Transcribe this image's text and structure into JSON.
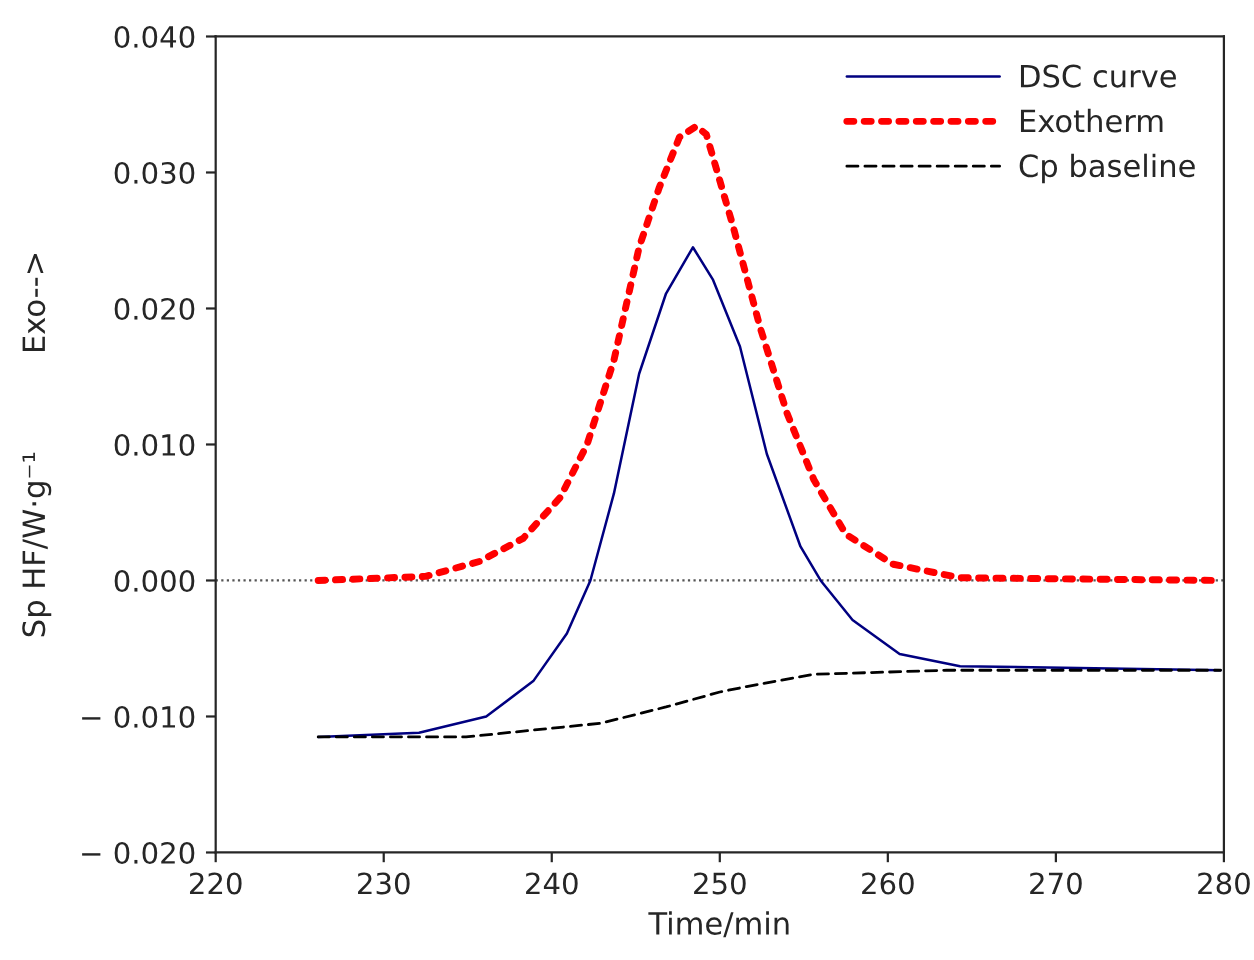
{
  "chart_data": {
    "type": "line",
    "xlabel": "Time/min",
    "ylabel": "Sp HF/W·g⁻¹          Exo-->",
    "xlim": [
      220,
      280
    ],
    "xticks": [
      220,
      230,
      240,
      250,
      260,
      270,
      280
    ],
    "ylim": [
      -0.02,
      0.04
    ],
    "yticks": [
      {
        "value": -0.02,
        "label": "− 0.020"
      },
      {
        "value": -0.01,
        "label": "− 0.010"
      },
      {
        "value": 0,
        "label": "0.000"
      },
      {
        "value": 0.01,
        "label": "0.010"
      },
      {
        "value": 0.02,
        "label": "0.020"
      },
      {
        "value": 0.03,
        "label": "0.030"
      },
      {
        "value": 0.04,
        "label": "0.040"
      }
    ],
    "grid": false,
    "legend": "top right",
    "marker": "none",
    "ref_lines": [
      {
        "axis": "y",
        "value": 0,
        "color": "#555555",
        "line_style": "dotted"
      }
    ],
    "series": [
      {
        "name": "DSC curve",
        "color": "#000080",
        "line_style": "solid",
        "x": [
          226.1,
          232.1,
          236.1,
          238.9,
          240.9,
          242.3,
          243.7,
          245.2,
          246.8,
          248.4,
          249.6,
          251.2,
          252.8,
          254.8,
          256.0,
          257.9,
          260.7,
          264.3,
          279.8
        ],
        "values": [
          -0.0115,
          -0.0112,
          -0.01,
          -0.0074,
          -0.0039,
          0.0,
          0.0064,
          0.0152,
          0.0211,
          0.0245,
          0.0221,
          0.0172,
          0.0093,
          0.0025,
          0.0,
          -0.0029,
          -0.0054,
          -0.0063,
          -0.0066
        ]
      },
      {
        "name": "Exotherm",
        "color": "#ff0000",
        "line_style": "dotted",
        "x": [
          226.1,
          232.5,
          235.7,
          238.3,
          240.5,
          242.1,
          243.7,
          245.2,
          246.4,
          247.6,
          248.6,
          249.2,
          250.8,
          252.4,
          254.0,
          255.6,
          257.5,
          260.3,
          264.3,
          279.8
        ],
        "values": [
          0.0,
          0.0003,
          0.0014,
          0.0031,
          0.0061,
          0.01,
          0.0162,
          0.0245,
          0.0289,
          0.0326,
          0.0334,
          0.0328,
          0.026,
          0.0186,
          0.0123,
          0.0074,
          0.0034,
          0.0012,
          0.0002,
          0.0
        ]
      },
      {
        "name": "Cp baseline",
        "color": "#000000",
        "line_style": "dashed",
        "x": [
          226.1,
          234.9,
          242.9,
          246.8,
          250.0,
          251.6,
          255.6,
          263.5,
          279.8
        ],
        "values": [
          -0.0115,
          -0.0115,
          -0.0105,
          -0.0093,
          -0.0082,
          -0.0078,
          -0.0069,
          -0.0066,
          -0.0066
        ]
      }
    ]
  }
}
